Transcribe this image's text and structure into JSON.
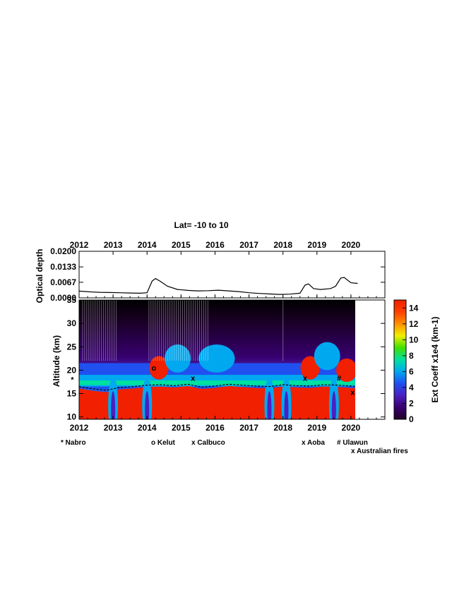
{
  "chart_data": [
    {
      "type": "line",
      "title": "Lat= -10 to 10",
      "ylabel": "Optical depth",
      "xlim": [
        2012,
        2021
      ],
      "ylim": [
        0.0,
        0.02
      ],
      "x_ticks": [
        "2012",
        "2013",
        "2014",
        "2015",
        "2016",
        "2017",
        "2018",
        "2019",
        "2020"
      ],
      "y_ticks": [
        "0.0200",
        "0.0133",
        "0.0067",
        "0.0000"
      ],
      "series": [
        {
          "x": [
            2012.0,
            2012.3,
            2012.6,
            2012.9,
            2013.2,
            2013.5,
            2013.8,
            2014.0,
            2014.15,
            2014.25,
            2014.4,
            2014.6,
            2014.9,
            2015.2,
            2015.5,
            2015.8,
            2016.1,
            2016.4,
            2016.7,
            2017.0,
            2017.3,
            2017.6,
            2017.9,
            2018.2,
            2018.5,
            2018.65,
            2018.75,
            2018.9,
            2019.1,
            2019.4,
            2019.55,
            2019.7,
            2019.8,
            2020.0,
            2020.2
          ],
          "y": [
            0.0029,
            0.0026,
            0.0024,
            0.0023,
            0.0022,
            0.0021,
            0.002,
            0.0022,
            0.0072,
            0.0083,
            0.007,
            0.005,
            0.0036,
            0.0032,
            0.003,
            0.0031,
            0.0033,
            0.003,
            0.0027,
            0.0022,
            0.0019,
            0.0017,
            0.0015,
            0.0016,
            0.002,
            0.0055,
            0.006,
            0.004,
            0.0036,
            0.004,
            0.005,
            0.0085,
            0.0088,
            0.0065,
            0.0062
          ]
        }
      ]
    },
    {
      "type": "heatmap",
      "ylabel": "Altitude (km)",
      "xlim": [
        2012,
        2021
      ],
      "ylim": [
        9.5,
        35
      ],
      "x_ticks": [
        "2012",
        "2013",
        "2014",
        "2015",
        "2016",
        "2017",
        "2018",
        "2019",
        "2020"
      ],
      "y_ticks": [
        "35",
        "30",
        "25",
        "20",
        "15",
        "10"
      ],
      "colorbar": {
        "label": "Ext Coeff x1e4 (km-1)",
        "range": [
          0,
          15
        ],
        "ticks": [
          "14",
          "12",
          "10",
          "8",
          "6",
          "4",
          "2",
          "0"
        ],
        "colors": [
          "#200028",
          "#3a0070",
          "#4a20c0",
          "#2050f0",
          "#00a8f0",
          "#00e0a0",
          "#40e000",
          "#f0f000",
          "#ff9000",
          "#ff4000",
          "#f02000"
        ]
      },
      "tropopause": {
        "x": [
          2012.0,
          2012.4,
          2012.8,
          2013.2,
          2013.6,
          2014.0,
          2014.4,
          2014.8,
          2015.2,
          2015.6,
          2016.0,
          2016.4,
          2016.8,
          2017.2,
          2017.6,
          2018.0,
          2018.4,
          2018.8,
          2019.2,
          2019.6,
          2020.0,
          2020.2
        ],
        "y": [
          16.5,
          16.0,
          15.7,
          16.3,
          16.5,
          16.8,
          16.9,
          16.7,
          17.0,
          16.4,
          16.6,
          17.0,
          16.8,
          16.6,
          16.5,
          16.9,
          16.7,
          16.6,
          16.9,
          16.8,
          16.6,
          16.5
        ]
      },
      "events": [
        {
          "marker": "*",
          "name": "Nabro",
          "x": 2011.8,
          "y": 18.0
        },
        {
          "marker": "o",
          "name": "Kelut",
          "x": 2014.2,
          "y": 20.5
        },
        {
          "marker": "x",
          "name": "Calbuco",
          "x": 2015.35,
          "y": 18.3
        },
        {
          "marker": "x",
          "name": "Aoba",
          "x": 2018.65,
          "y": 18.3
        },
        {
          "marker": "#",
          "name": "Ulawun",
          "x": 2019.65,
          "y": 18.3
        },
        {
          "marker": "x",
          "name": "Australian fires",
          "x": 2020.05,
          "y": 15.3
        }
      ],
      "legend_labels": [
        "* Nabro",
        "o Kelut",
        "x Calbuco",
        "x Aoba",
        "# Ulawun",
        "x Australian fires"
      ]
    }
  ]
}
